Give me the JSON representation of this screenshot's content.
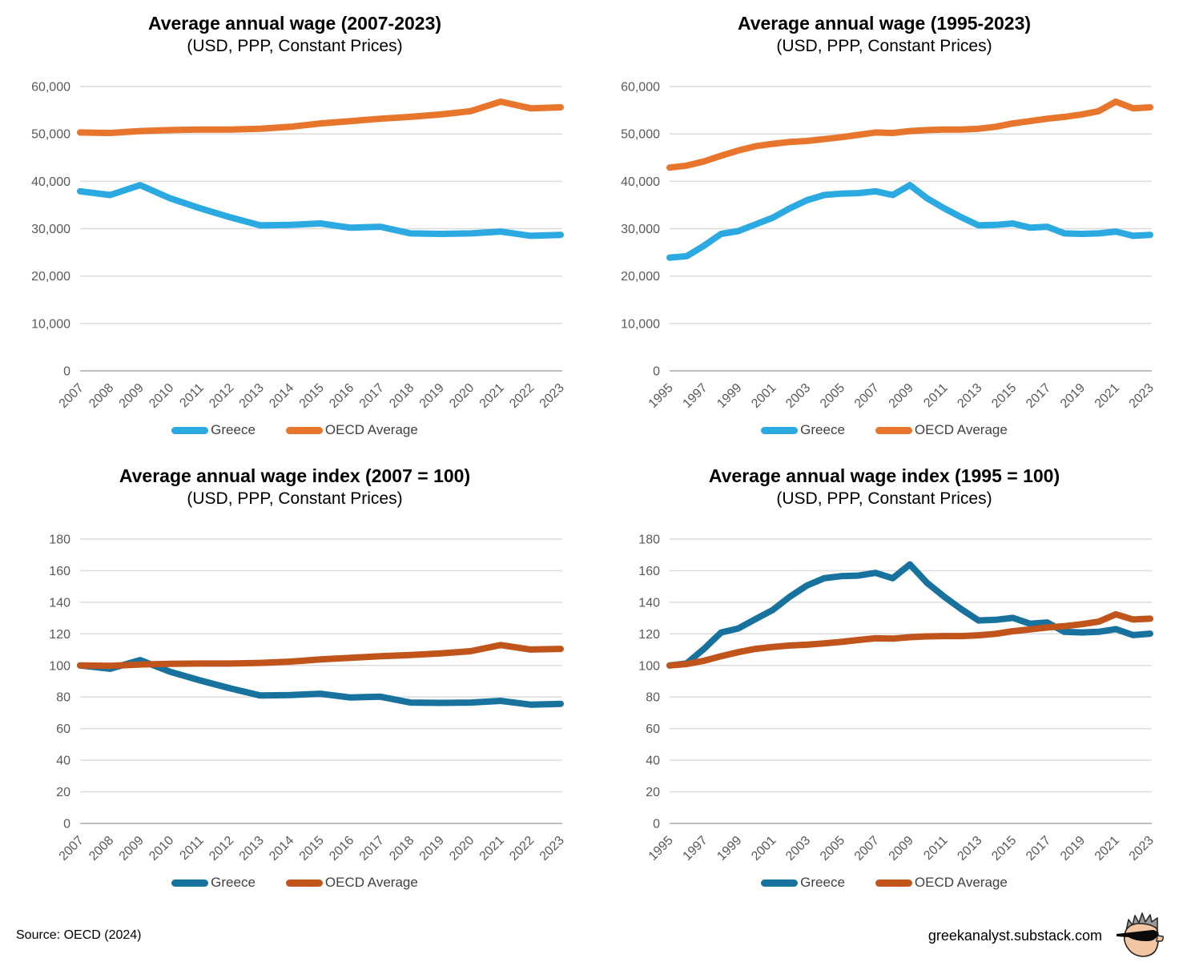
{
  "page": {
    "source_note": "Source: OECD (2024)",
    "site_url": "greekanalyst.substack.com",
    "logo": "greekanalyst-face-logo"
  },
  "colors": {
    "greece_light": "#2BA9E1",
    "oecd_light": "#E8752C",
    "greece_dark": "#17739D",
    "oecd_dark": "#C1541B",
    "gridline": "#D9D9D9",
    "axis_zero_line": "#BFBFBF",
    "tick_label": "#595959",
    "legend_text": "#404040"
  },
  "chart_data": [
    {
      "type": "line",
      "title": "Average annual wage (2007-2023)",
      "subtitle": "(USD, PPP, Constant Prices)",
      "xlabel": "",
      "ylabel": "",
      "grid": true,
      "legend_position": "bottom",
      "ylim": [
        0,
        60000
      ],
      "ytick_step": 10000,
      "y_tick_labels": [
        "0",
        "10,000",
        "20,000",
        "30,000",
        "40,000",
        "50,000",
        "60,000"
      ],
      "x": [
        2007,
        2008,
        2009,
        2010,
        2011,
        2012,
        2013,
        2014,
        2015,
        2016,
        2017,
        2018,
        2019,
        2020,
        2021,
        2022,
        2023
      ],
      "x_tick_labels": [
        "2007",
        "2008",
        "2009",
        "2010",
        "2011",
        "2012",
        "2013",
        "2014",
        "2015",
        "2016",
        "2017",
        "2018",
        "2019",
        "2020",
        "2021",
        "2022",
        "2023"
      ],
      "series": [
        {
          "name": "Greece",
          "color": "greece_light",
          "values": [
            37900,
            37100,
            39200,
            36400,
            34300,
            32400,
            30700,
            30800,
            31100,
            30200,
            30400,
            29000,
            28900,
            29000,
            29400,
            28500,
            28700
          ]
        },
        {
          "name": "OECD Average",
          "color": "oecd_light",
          "values": [
            50300,
            50200,
            50600,
            50800,
            50900,
            50900,
            51100,
            51500,
            52200,
            52700,
            53200,
            53600,
            54100,
            54800,
            56800,
            55400,
            55600
          ]
        }
      ]
    },
    {
      "type": "line",
      "title": "Average annual wage (1995-2023)",
      "subtitle": "(USD, PPP, Constant Prices)",
      "xlabel": "",
      "ylabel": "",
      "grid": true,
      "legend_position": "bottom",
      "ylim": [
        0,
        60000
      ],
      "ytick_step": 10000,
      "y_tick_labels": [
        "0",
        "10,000",
        "20,000",
        "30,000",
        "40,000",
        "50,000",
        "60,000"
      ],
      "x": [
        1995,
        1996,
        1997,
        1998,
        1999,
        2000,
        2001,
        2002,
        2003,
        2004,
        2005,
        2006,
        2007,
        2008,
        2009,
        2010,
        2011,
        2012,
        2013,
        2014,
        2015,
        2016,
        2017,
        2018,
        2019,
        2020,
        2021,
        2022,
        2023
      ],
      "x_tick_labels": [
        "1995",
        "1997",
        "1999",
        "2001",
        "2003",
        "2005",
        "2007",
        "2009",
        "2011",
        "2013",
        "2015",
        "2017",
        "2019",
        "2021",
        "2023"
      ],
      "series": [
        {
          "name": "Greece",
          "color": "greece_light",
          "values": [
            23900,
            24200,
            26400,
            28900,
            29500,
            30900,
            32300,
            34300,
            36000,
            37100,
            37400,
            37500,
            37900,
            37100,
            39200,
            36400,
            34300,
            32400,
            30700,
            30800,
            31100,
            30200,
            30400,
            29000,
            28900,
            29000,
            29400,
            28500,
            28700
          ]
        },
        {
          "name": "OECD Average",
          "color": "oecd_light",
          "values": [
            42900,
            43300,
            44200,
            45400,
            46500,
            47400,
            47900,
            48300,
            48500,
            48900,
            49300,
            49800,
            50300,
            50200,
            50600,
            50800,
            50900,
            50900,
            51100,
            51500,
            52200,
            52700,
            53200,
            53600,
            54100,
            54800,
            56800,
            55400,
            55600
          ]
        }
      ]
    },
    {
      "type": "line",
      "title": "Average annual wage index (2007 = 100)",
      "subtitle": "(USD, PPP, Constant Prices)",
      "xlabel": "",
      "ylabel": "",
      "grid": true,
      "legend_position": "bottom",
      "ylim": [
        0,
        180
      ],
      "ytick_step": 20,
      "y_tick_labels": [
        "0",
        "20",
        "40",
        "60",
        "80",
        "100",
        "120",
        "140",
        "160",
        "180"
      ],
      "x": [
        2007,
        2008,
        2009,
        2010,
        2011,
        2012,
        2013,
        2014,
        2015,
        2016,
        2017,
        2018,
        2019,
        2020,
        2021,
        2022,
        2023
      ],
      "x_tick_labels": [
        "2007",
        "2008",
        "2009",
        "2010",
        "2011",
        "2012",
        "2013",
        "2014",
        "2015",
        "2016",
        "2017",
        "2018",
        "2019",
        "2020",
        "2021",
        "2022",
        "2023"
      ],
      "series": [
        {
          "name": "Greece",
          "color": "greece_dark",
          "values": [
            100,
            97.9,
            103.4,
            96.0,
            90.5,
            85.5,
            81.0,
            81.3,
            82.1,
            79.7,
            80.2,
            76.5,
            76.3,
            76.5,
            77.6,
            75.2,
            75.7
          ]
        },
        {
          "name": "OECD Average",
          "color": "oecd_dark",
          "values": [
            100,
            99.8,
            100.6,
            101.0,
            101.2,
            101.2,
            101.6,
            102.4,
            103.8,
            104.8,
            105.8,
            106.6,
            107.6,
            109.0,
            112.9,
            110.1,
            110.5
          ]
        }
      ]
    },
    {
      "type": "line",
      "title": "Average annual wage index (1995 = 100)",
      "subtitle": "(USD, PPP, Constant Prices)",
      "xlabel": "",
      "ylabel": "",
      "grid": true,
      "legend_position": "bottom",
      "ylim": [
        0,
        180
      ],
      "ytick_step": 20,
      "y_tick_labels": [
        "0",
        "20",
        "40",
        "60",
        "80",
        "100",
        "120",
        "140",
        "160",
        "180"
      ],
      "x": [
        1995,
        1996,
        1997,
        1998,
        1999,
        2000,
        2001,
        2002,
        2003,
        2004,
        2005,
        2006,
        2007,
        2008,
        2009,
        2010,
        2011,
        2012,
        2013,
        2014,
        2015,
        2016,
        2017,
        2018,
        2019,
        2020,
        2021,
        2022,
        2023
      ],
      "x_tick_labels": [
        "1995",
        "1997",
        "1999",
        "2001",
        "2003",
        "2005",
        "2007",
        "2009",
        "2011",
        "2013",
        "2015",
        "2017",
        "2019",
        "2021",
        "2023"
      ],
      "series": [
        {
          "name": "Greece",
          "color": "greece_dark",
          "values": [
            100,
            101.3,
            110.5,
            120.9,
            123.4,
            129.3,
            135.1,
            143.5,
            150.6,
            155.2,
            156.5,
            156.9,
            158.6,
            155.2,
            164.0,
            152.3,
            143.5,
            135.6,
            128.5,
            128.9,
            130.1,
            126.4,
            127.2,
            121.3,
            120.9,
            121.3,
            123.0,
            119.2,
            120.1
          ]
        },
        {
          "name": "OECD Average",
          "color": "oecd_dark",
          "values": [
            100,
            100.9,
            103.0,
            105.8,
            108.4,
            110.5,
            111.7,
            112.6,
            113.1,
            114.0,
            114.9,
            116.1,
            117.2,
            117.0,
            117.9,
            118.4,
            118.6,
            118.6,
            119.1,
            120.0,
            121.7,
            122.8,
            124.0,
            124.9,
            126.1,
            127.7,
            132.4,
            129.1,
            129.6
          ]
        }
      ]
    }
  ]
}
